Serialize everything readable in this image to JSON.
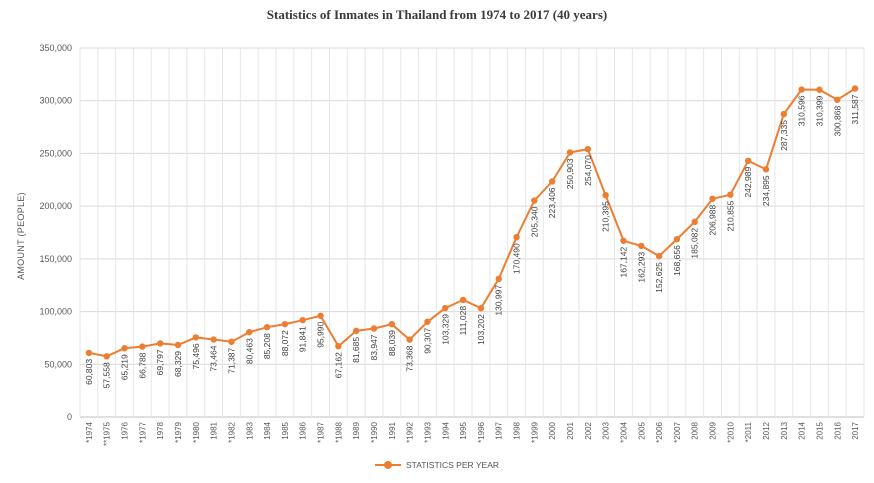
{
  "chart_data": {
    "type": "line",
    "title": "Statistics of Inmates in Thailand from 1974 to 2017 (40 years)",
    "ylabel": "AMOUNT (PEOPLE)",
    "xlabel": "",
    "ylim": [
      0,
      350000
    ],
    "yticks": [
      "0",
      "50,000",
      "100,000",
      "150,000",
      "200,000",
      "250,000",
      "300,000",
      "350,000"
    ],
    "grid": true,
    "legend_position": "bottom",
    "color": "#ED7D31",
    "categories": [
      "*1974",
      "**1975",
      "1976",
      "*1977",
      "1978",
      "*1979",
      "*1980",
      "1981",
      "*1982",
      "1983",
      "1984",
      "1985",
      "1986",
      "*1987",
      "*1988",
      "1989",
      "*1990",
      "1991",
      "*1992",
      "*1993",
      "1994",
      "1995",
      "*1996",
      "1997",
      "1998",
      "*1999",
      "2000",
      "2001",
      "2002",
      "2003",
      "*2004",
      "2005",
      "*2006",
      "*2007",
      "2008",
      "2009",
      "*2010",
      "*2011",
      "2012",
      "2013",
      "2014",
      "2015",
      "2016",
      "2017"
    ],
    "series": [
      {
        "name": "STATISTICS PER YEAR",
        "values": [
          60803,
          57558,
          65219,
          66788,
          69797,
          68329,
          75496,
          73464,
          71387,
          80463,
          85208,
          88072,
          91841,
          95990,
          67162,
          81685,
          83947,
          88039,
          73368,
          90307,
          103329,
          111028,
          103202,
          130997,
          170490,
          205340,
          223406,
          250903,
          254070,
          210395,
          167142,
          162293,
          152625,
          168656,
          185082,
          206988,
          210855,
          242989,
          234895,
          287335,
          310596,
          310399,
          300868,
          311587
        ],
        "labels": [
          "60,803",
          "57,558",
          "65,219",
          "66,788",
          "69,797",
          "68,329",
          "75,496",
          "73,464",
          "71,387",
          "80,463",
          "85,208",
          "88,072",
          "91,841",
          "95,990",
          "67,162",
          "81,685",
          "83,947",
          "88,039",
          "73,368",
          "90,307",
          "103,329",
          "111,028",
          "103,202",
          "130,997",
          "170,490",
          "205,340",
          "223,406",
          "250,903",
          "254,070",
          "210,395",
          "167,142",
          "162,293",
          "152,625",
          "168,656",
          "185,082",
          "206,988",
          "210,855",
          "242,989",
          "234,895",
          "287,335",
          "310,596",
          "310,399",
          "300,868",
          "311,587"
        ]
      }
    ]
  }
}
